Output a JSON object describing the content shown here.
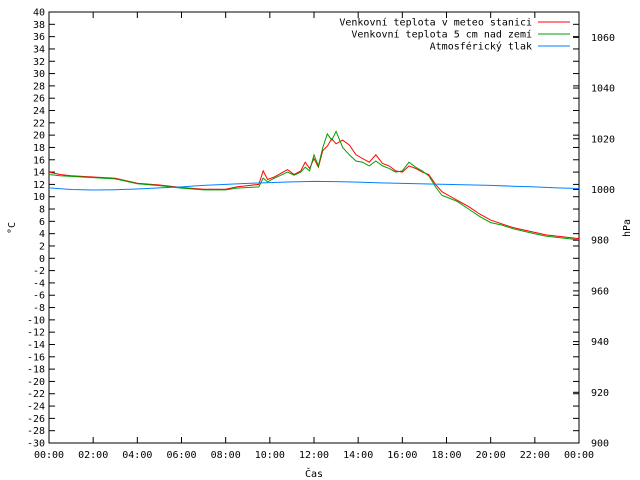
{
  "chart_data": {
    "type": "line",
    "title": "",
    "xlabel": "Čas",
    "ylabel": "°C",
    "y2label": "hPa",
    "xlim": [
      0,
      24
    ],
    "ylim": [
      -30,
      40
    ],
    "y2lim": [
      900,
      1070
    ],
    "grid": false,
    "legend_position": "top-right",
    "x_ticks": [
      "00:00",
      "02:00",
      "04:00",
      "06:00",
      "08:00",
      "10:00",
      "12:00",
      "14:00",
      "16:00",
      "18:00",
      "20:00",
      "22:00",
      "00:00"
    ],
    "y_ticks": [
      "40",
      "38",
      "36",
      "34",
      "32",
      "30",
      "28",
      "26",
      "24",
      "22",
      "20",
      "18",
      "16",
      "14",
      "12",
      "10",
      "8",
      "6",
      "4",
      "2",
      "0",
      "-2",
      "-4",
      "-6",
      "-8",
      "-10",
      "-12",
      "-14",
      "-16",
      "-18",
      "-20",
      "-22",
      "-24",
      "-26",
      "-28",
      "-30"
    ],
    "y2_ticks": [
      "1060",
      "1040",
      "1020",
      "1000",
      "980",
      "960",
      "940",
      "920",
      "900"
    ],
    "series": [
      {
        "name": "Venkovní teplota v meteo stanici",
        "color": "#ff0000",
        "axis": "left",
        "points": [
          [
            0,
            14.0
          ],
          [
            0.5,
            13.6
          ],
          [
            1,
            13.4
          ],
          [
            2,
            13.2
          ],
          [
            3,
            13.0
          ],
          [
            3.5,
            12.6
          ],
          [
            4,
            12.2
          ],
          [
            5,
            11.9
          ],
          [
            6,
            11.5
          ],
          [
            7,
            11.2
          ],
          [
            8,
            11.2
          ],
          [
            8.5,
            11.6
          ],
          [
            9,
            11.8
          ],
          [
            9.5,
            12.0
          ],
          [
            9.7,
            14.2
          ],
          [
            9.9,
            12.8
          ],
          [
            10.2,
            13.2
          ],
          [
            10.5,
            13.8
          ],
          [
            10.8,
            14.4
          ],
          [
            11.1,
            13.6
          ],
          [
            11.4,
            14.2
          ],
          [
            11.6,
            15.6
          ],
          [
            11.8,
            14.6
          ],
          [
            12.0,
            16.2
          ],
          [
            12.2,
            14.8
          ],
          [
            12.4,
            17.5
          ],
          [
            12.6,
            18.2
          ],
          [
            12.8,
            19.4
          ],
          [
            13.0,
            18.6
          ],
          [
            13.3,
            19.2
          ],
          [
            13.6,
            18.4
          ],
          [
            13.9,
            16.8
          ],
          [
            14.2,
            16.2
          ],
          [
            14.5,
            15.6
          ],
          [
            14.8,
            16.8
          ],
          [
            15.1,
            15.4
          ],
          [
            15.4,
            15.0
          ],
          [
            15.7,
            14.2
          ],
          [
            16.0,
            14.0
          ],
          [
            16.3,
            15.0
          ],
          [
            16.6,
            14.6
          ],
          [
            16.9,
            14.0
          ],
          [
            17.2,
            13.6
          ],
          [
            17.5,
            12.0
          ],
          [
            17.8,
            10.8
          ],
          [
            18.1,
            10.2
          ],
          [
            18.5,
            9.4
          ],
          [
            19.0,
            8.4
          ],
          [
            19.5,
            7.2
          ],
          [
            20.0,
            6.2
          ],
          [
            20.5,
            5.6
          ],
          [
            21.0,
            5.0
          ],
          [
            21.5,
            4.6
          ],
          [
            22.0,
            4.2
          ],
          [
            22.5,
            3.8
          ],
          [
            23.0,
            3.6
          ],
          [
            23.5,
            3.4
          ],
          [
            24,
            3.2
          ]
        ]
      },
      {
        "name": "Venkovní teplota 5 cm nad zemí",
        "color": "#00a000",
        "axis": "left",
        "points": [
          [
            0,
            13.6
          ],
          [
            0.5,
            13.4
          ],
          [
            1,
            13.3
          ],
          [
            2,
            13.1
          ],
          [
            3,
            12.9
          ],
          [
            3.5,
            12.5
          ],
          [
            4,
            12.1
          ],
          [
            5,
            11.8
          ],
          [
            6,
            11.4
          ],
          [
            7,
            11.1
          ],
          [
            8,
            11.1
          ],
          [
            8.5,
            11.4
          ],
          [
            9,
            11.5
          ],
          [
            9.5,
            11.6
          ],
          [
            9.7,
            13.0
          ],
          [
            9.9,
            12.4
          ],
          [
            10.2,
            13.0
          ],
          [
            10.5,
            13.5
          ],
          [
            10.8,
            14.0
          ],
          [
            11.1,
            13.5
          ],
          [
            11.4,
            14.0
          ],
          [
            11.6,
            14.8
          ],
          [
            11.8,
            14.2
          ],
          [
            12.0,
            16.8
          ],
          [
            12.2,
            15.0
          ],
          [
            12.4,
            18.0
          ],
          [
            12.6,
            20.2
          ],
          [
            12.8,
            19.2
          ],
          [
            13.0,
            20.6
          ],
          [
            13.3,
            18.0
          ],
          [
            13.6,
            16.8
          ],
          [
            13.9,
            15.8
          ],
          [
            14.2,
            15.6
          ],
          [
            14.5,
            15.0
          ],
          [
            14.8,
            15.8
          ],
          [
            15.1,
            15.0
          ],
          [
            15.4,
            14.6
          ],
          [
            15.7,
            14.0
          ],
          [
            16.0,
            14.2
          ],
          [
            16.3,
            15.6
          ],
          [
            16.6,
            14.8
          ],
          [
            16.9,
            14.2
          ],
          [
            17.2,
            13.4
          ],
          [
            17.5,
            11.6
          ],
          [
            17.8,
            10.2
          ],
          [
            18.1,
            9.8
          ],
          [
            18.5,
            9.2
          ],
          [
            19.0,
            8.0
          ],
          [
            19.5,
            6.8
          ],
          [
            20.0,
            5.8
          ],
          [
            20.5,
            5.4
          ],
          [
            21.0,
            4.8
          ],
          [
            21.5,
            4.4
          ],
          [
            22.0,
            4.0
          ],
          [
            22.5,
            3.6
          ],
          [
            23.0,
            3.4
          ],
          [
            23.5,
            3.2
          ],
          [
            24,
            3.0
          ]
        ]
      },
      {
        "name": "Atmosférický tlak",
        "color": "#0080ff",
        "axis": "right",
        "points": [
          [
            0,
            1000.6
          ],
          [
            1,
            1000.0
          ],
          [
            2,
            999.8
          ],
          [
            3,
            999.9
          ],
          [
            4,
            1000.2
          ],
          [
            5,
            1000.6
          ],
          [
            6,
            1001.0
          ],
          [
            7,
            1001.6
          ],
          [
            8,
            1002.0
          ],
          [
            9,
            1002.4
          ],
          [
            10,
            1002.7
          ],
          [
            11,
            1003.0
          ],
          [
            12,
            1003.2
          ],
          [
            13,
            1003.1
          ],
          [
            14,
            1002.9
          ],
          [
            15,
            1002.6
          ],
          [
            16,
            1002.4
          ],
          [
            17,
            1002.2
          ],
          [
            18,
            1002.0
          ],
          [
            19,
            1001.8
          ],
          [
            20,
            1001.6
          ],
          [
            21,
            1001.3
          ],
          [
            22,
            1001.0
          ],
          [
            23,
            1000.6
          ],
          [
            24,
            1000.4
          ]
        ]
      }
    ]
  }
}
